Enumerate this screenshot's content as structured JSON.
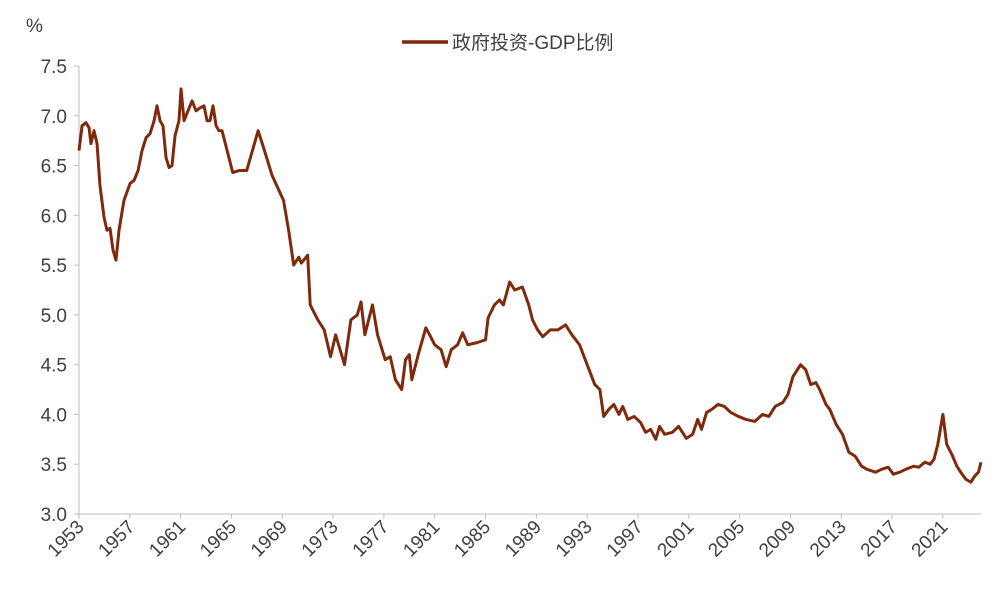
{
  "chart_data": {
    "type": "line",
    "y_label": "%",
    "xlim": [
      1953,
      2024
    ],
    "xticks": [
      1953,
      1957,
      1961,
      1965,
      1969,
      1973,
      1977,
      1981,
      1985,
      1989,
      1993,
      1997,
      2001,
      2005,
      2009,
      2013,
      2017,
      2021
    ],
    "ylim": [
      3,
      7.5
    ],
    "yticks": [
      {
        "value": 3,
        "label": "3.0"
      },
      3.5,
      {
        "value": 4,
        "label": "4.0"
      },
      4.5,
      {
        "value": 5,
        "label": "5.0"
      },
      5.5,
      {
        "value": 6,
        "label": "6.0"
      },
      6.5,
      {
        "value": 7,
        "label": "7.0"
      },
      7.5
    ],
    "grid": false,
    "legend": "top",
    "x": [
      1953.0,
      1953.24,
      1953.55,
      1953.79,
      1953.94,
      1954.18,
      1954.42,
      1954.65,
      1954.97,
      1955.2,
      1955.44,
      1955.68,
      1955.91,
      1956.15,
      1956.54,
      1957.02,
      1957.33,
      1957.65,
      1957.96,
      1958.28,
      1958.59,
      1958.91,
      1959.14,
      1959.38,
      1959.61,
      1959.85,
      1960.09,
      1960.32,
      1960.56,
      1960.87,
      1961.03,
      1961.27,
      1961.58,
      1961.9,
      1962.21,
      1962.53,
      1962.84,
      1963.08,
      1963.31,
      1963.55,
      1963.79,
      1964.02,
      1964.26,
      1965.1,
      1965.6,
      1966.2,
      1967.1,
      1967.6,
      1968.2,
      1969.1,
      1969.5,
      1969.9,
      1970.3,
      1970.5,
      1971.0,
      1971.2,
      1971.8,
      1972.3,
      1972.8,
      1973.2,
      1973.9,
      1974.4,
      1974.9,
      1975.2,
      1975.5,
      1976.1,
      1976.5,
      1977.1,
      1977.5,
      1977.9,
      1978.4,
      1978.7,
      1979.0,
      1979.2,
      1979.7,
      1980.3,
      1980.6,
      1981.0,
      1981.5,
      1981.9,
      1982.3,
      1982.8,
      1983.2,
      1983.6,
      1984.3,
      1985.0,
      1985.2,
      1985.7,
      1986.1,
      1986.4,
      1986.9,
      1987.3,
      1987.9,
      1988.4,
      1988.7,
      1989.1,
      1989.5,
      1990.1,
      1990.7,
      1991.3,
      1991.8,
      1992.4,
      1993.0,
      1993.6,
      1994.0,
      1994.3,
      1994.7,
      1995.1,
      1995.5,
      1995.8,
      1996.2,
      1996.7,
      1997.2,
      1997.6,
      1998.0,
      1998.4,
      1998.7,
      1999.1,
      1999.7,
      2000.2,
      2000.8,
      2001.3,
      2001.7,
      2002.0,
      2002.4,
      2002.8,
      2003.3,
      2003.8,
      2004.3,
      2004.9,
      2005.5,
      2006.2,
      2006.8,
      2007.3,
      2007.8,
      2008.4,
      2008.8,
      2009.2,
      2009.8,
      2010.2,
      2010.6,
      2011.0,
      2011.3,
      2011.8,
      2012.1,
      2012.6,
      2013.1,
      2013.6,
      2014.1,
      2014.6,
      2015.0,
      2015.7,
      2016.2,
      2016.7,
      2017.1,
      2017.6,
      2018.1,
      2018.7,
      2019.1,
      2019.6,
      2020.0,
      2020.3,
      2020.6,
      2021.0,
      2021.3,
      2021.7,
      2022.1,
      2022.4,
      2022.8,
      2023.2,
      2023.5,
      2023.8,
      2024.0
    ],
    "series": [
      {
        "name": "政府投资-GDP比例",
        "color": "#7f2a0c",
        "values": [
          6.65,
          6.9,
          6.93,
          6.88,
          6.72,
          6.85,
          6.72,
          6.3,
          5.98,
          5.85,
          5.87,
          5.65,
          5.55,
          5.85,
          6.15,
          6.32,
          6.35,
          6.45,
          6.65,
          6.78,
          6.82,
          6.95,
          7.1,
          6.95,
          6.9,
          6.58,
          6.48,
          6.5,
          6.8,
          6.95,
          7.27,
          6.95,
          7.05,
          7.15,
          7.05,
          7.08,
          7.1,
          6.95,
          6.95,
          7.1,
          6.9,
          6.85,
          6.85,
          6.43,
          6.45,
          6.45,
          6.85,
          6.65,
          6.4,
          6.15,
          5.85,
          5.5,
          5.58,
          5.52,
          5.6,
          5.1,
          4.95,
          4.85,
          4.58,
          4.8,
          4.5,
          4.95,
          5.0,
          5.13,
          4.8,
          5.1,
          4.8,
          4.55,
          4.58,
          4.35,
          4.25,
          4.55,
          4.6,
          4.35,
          4.6,
          4.87,
          4.8,
          4.7,
          4.65,
          4.48,
          4.65,
          4.7,
          4.82,
          4.7,
          4.72,
          4.75,
          4.97,
          5.1,
          5.15,
          5.1,
          5.33,
          5.25,
          5.28,
          5.1,
          4.95,
          4.85,
          4.78,
          4.85,
          4.85,
          4.9,
          4.8,
          4.7,
          4.5,
          4.3,
          4.25,
          3.98,
          4.05,
          4.1,
          4.0,
          4.08,
          3.95,
          3.98,
          3.92,
          3.82,
          3.85,
          3.75,
          3.88,
          3.8,
          3.82,
          3.88,
          3.76,
          3.8,
          3.95,
          3.85,
          4.02,
          4.05,
          4.1,
          4.08,
          4.02,
          3.98,
          3.95,
          3.93,
          4.0,
          3.98,
          4.08,
          4.12,
          4.2,
          4.38,
          4.5,
          4.45,
          4.3,
          4.32,
          4.25,
          4.1,
          4.05,
          3.9,
          3.8,
          3.62,
          3.58,
          3.48,
          3.45,
          3.42,
          3.45,
          3.47,
          3.4,
          3.42,
          3.45,
          3.48,
          3.47,
          3.52,
          3.5,
          3.55,
          3.7,
          4.0,
          3.7,
          3.6,
          3.48,
          3.42,
          3.35,
          3.32,
          3.38,
          3.42,
          3.52
        ]
      }
    ]
  }
}
